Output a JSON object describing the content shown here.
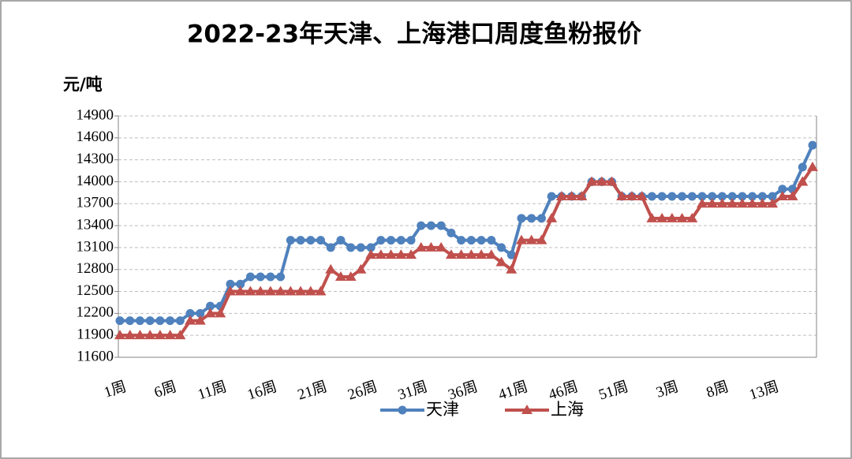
{
  "chart_data": {
    "type": "line",
    "title": "2022-23年天津、上海港口周度鱼粉报价",
    "y_label": "元/吨",
    "categories": [
      "1周",
      null,
      null,
      null,
      null,
      "6周",
      null,
      null,
      null,
      null,
      "11周",
      null,
      null,
      null,
      null,
      "16周",
      null,
      null,
      null,
      null,
      "21周",
      null,
      null,
      null,
      null,
      "26周",
      null,
      null,
      null,
      null,
      "31周",
      null,
      null,
      null,
      null,
      "36周",
      null,
      null,
      null,
      null,
      "41周",
      null,
      null,
      null,
      null,
      "46周",
      null,
      null,
      null,
      null,
      "51周",
      null,
      null,
      null,
      null,
      "3周",
      null,
      null,
      null,
      null,
      "8周",
      null,
      null,
      null,
      null,
      "13周",
      null,
      null,
      null,
      null
    ],
    "series": [
      {
        "name": "天津",
        "color": "#4f81bd",
        "marker": "circle",
        "values": [
          12100,
          12100,
          12100,
          12100,
          12100,
          12100,
          12100,
          12200,
          12200,
          12300,
          12300,
          12600,
          12600,
          12700,
          12700,
          12700,
          12700,
          13200,
          13200,
          13200,
          13200,
          13100,
          13200,
          13100,
          13100,
          13100,
          13200,
          13200,
          13200,
          13200,
          13400,
          13400,
          13400,
          13300,
          13200,
          13200,
          13200,
          13200,
          13100,
          13000,
          13500,
          13500,
          13500,
          13800,
          13800,
          13800,
          13800,
          14000,
          14000,
          14000,
          13800,
          13800,
          13800,
          13800,
          13800,
          13800,
          13800,
          13800,
          13800,
          13800,
          13800,
          13800,
          13800,
          13800,
          13800,
          13800,
          13900,
          13900,
          14200,
          14500
        ]
      },
      {
        "name": "上海",
        "color": "#c0504d",
        "marker": "triangle",
        "values": [
          11900,
          11900,
          11900,
          11900,
          11900,
          11900,
          11900,
          12100,
          12100,
          12200,
          12200,
          12500,
          12500,
          12500,
          12500,
          12500,
          12500,
          12500,
          12500,
          12500,
          12500,
          12800,
          12700,
          12700,
          12800,
          13000,
          13000,
          13000,
          13000,
          13000,
          13100,
          13100,
          13100,
          13000,
          13000,
          13000,
          13000,
          13000,
          12900,
          12800,
          13200,
          13200,
          13200,
          13500,
          13800,
          13800,
          13800,
          14000,
          14000,
          14000,
          13800,
          13800,
          13800,
          13500,
          13500,
          13500,
          13500,
          13500,
          13700,
          13700,
          13700,
          13700,
          13700,
          13700,
          13700,
          13700,
          13800,
          13800,
          14000,
          14200
        ]
      }
    ],
    "ylim": [
      11600,
      14900
    ],
    "yticks": [
      11600,
      11900,
      12200,
      12500,
      12800,
      13100,
      13400,
      13700,
      14000,
      14300,
      14600,
      14900
    ],
    "grid": true,
    "legend": "bottom"
  }
}
